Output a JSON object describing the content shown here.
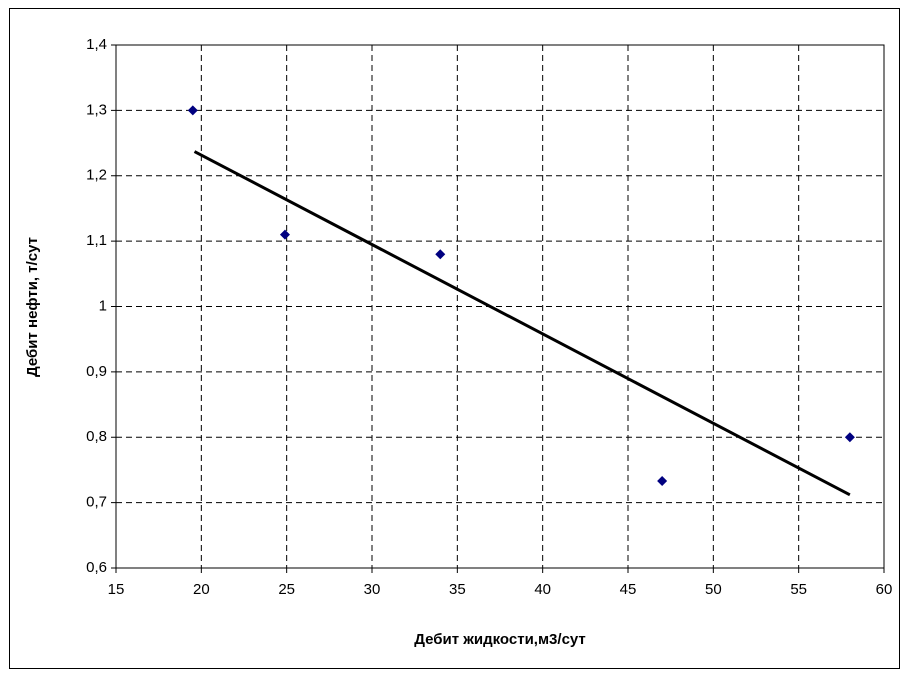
{
  "chart_data": {
    "type": "scatter",
    "x_label": "Дебит жидкости,м3/сут",
    "y_label": "Дебит нефти, т/сут",
    "series": [
      {
        "color": "#000080",
        "x": [
          19.5,
          24.9,
          34,
          47,
          58
        ],
        "values": [
          1.3,
          1.11,
          1.08,
          0.733,
          0.8
        ]
      }
    ],
    "trendline": {
      "color": "#000000",
      "x": [
        19.6,
        58
      ],
      "values": [
        1.237,
        0.712
      ]
    },
    "xlim": [
      15,
      60
    ],
    "xticks": [
      15,
      20,
      25,
      30,
      35,
      40,
      45,
      50,
      55,
      60
    ],
    "ylim": [
      0.6,
      1.4
    ],
    "yticks": [
      {
        "value": 0.6,
        "label": "0,6"
      },
      {
        "value": 0.7,
        "label": "0,7"
      },
      {
        "value": 0.8,
        "label": "0,8"
      },
      {
        "value": 0.9,
        "label": "0,9"
      },
      1,
      {
        "value": 1.1,
        "label": "1,1"
      },
      {
        "value": 1.2,
        "label": "1,2"
      },
      {
        "value": 1.3,
        "label": "1,3"
      },
      {
        "value": 1.4,
        "label": "1,4"
      }
    ],
    "grid": true
  }
}
